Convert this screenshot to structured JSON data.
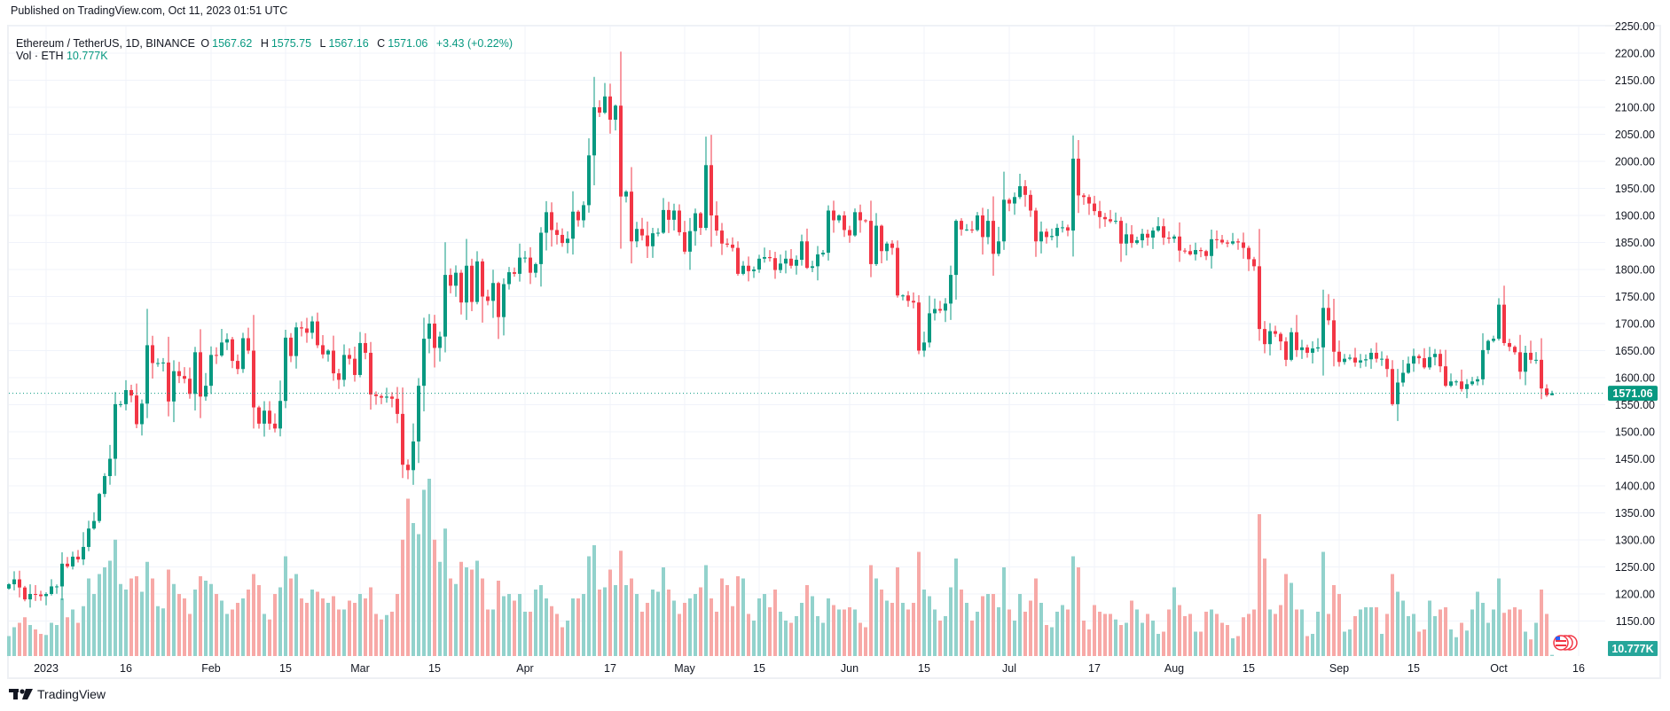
{
  "header": {
    "published": "Published on TradingView.com, Oct 11, 2023 01:51 UTC"
  },
  "legend": {
    "symbol": "Ethereum / TetherUS, 1D, BINANCE",
    "o_label": "O",
    "o": "1567.62",
    "h_label": "H",
    "h": "1575.75",
    "l_label": "L",
    "l": "1567.16",
    "c_label": "C",
    "c": "1571.06",
    "change": "+3.43 (+0.22%)",
    "vol_label": "Vol · ETH",
    "vol": "10.777K"
  },
  "price_axis": {
    "ticks": [
      "2250.00",
      "2200.00",
      "2150.00",
      "2100.00",
      "2050.00",
      "2000.00",
      "1950.00",
      "1900.00",
      "1850.00",
      "1800.00",
      "1750.00",
      "1700.00",
      "1650.00",
      "1600.00",
      "1550.00",
      "1500.00",
      "1450.00",
      "1400.00",
      "1350.00",
      "1300.00",
      "1250.00",
      "1200.00",
      "1150.00"
    ],
    "last_price": "1571.06",
    "last_volume": "10.777K"
  },
  "time_axis": {
    "labels": [
      {
        "text": "2023",
        "date": "2023-01-01"
      },
      {
        "text": "16",
        "date": "2023-01-16"
      },
      {
        "text": "Feb",
        "date": "2023-02-01"
      },
      {
        "text": "15",
        "date": "2023-02-15"
      },
      {
        "text": "Mar",
        "date": "2023-03-01"
      },
      {
        "text": "15",
        "date": "2023-03-15"
      },
      {
        "text": "Apr",
        "date": "2023-04-01"
      },
      {
        "text": "17",
        "date": "2023-04-17"
      },
      {
        "text": "May",
        "date": "2023-05-01"
      },
      {
        "text": "15",
        "date": "2023-05-15"
      },
      {
        "text": "Jun",
        "date": "2023-06-01"
      },
      {
        "text": "15",
        "date": "2023-06-15"
      },
      {
        "text": "Jul",
        "date": "2023-07-01"
      },
      {
        "text": "17",
        "date": "2023-07-17"
      },
      {
        "text": "Aug",
        "date": "2023-08-01"
      },
      {
        "text": "15",
        "date": "2023-08-15"
      },
      {
        "text": "Sep",
        "date": "2023-09-01"
      },
      {
        "text": "15",
        "date": "2023-09-15"
      },
      {
        "text": "Oct",
        "date": "2023-10-01"
      },
      {
        "text": "16",
        "date": "2023-10-16"
      }
    ]
  },
  "footer": {
    "brand": "TradingView"
  },
  "colors": {
    "up": "#089981",
    "down": "#f23645",
    "vol_up": "#92d2cc",
    "vol_down": "#f7a9a7",
    "grid": "#f0f3fa",
    "axis_text": "#131722"
  },
  "chart_data": {
    "type": "candlestick",
    "title": "Ethereum / TetherUS, 1D, BINANCE",
    "start_date": "2022-12-25",
    "ylim": [
      1100,
      2250
    ],
    "last_candle": {
      "o": 1567.62,
      "h": 1575.75,
      "l": 1567.16,
      "c": 1571.06
    },
    "close": [
      1218,
      1227,
      1212,
      1190,
      1200,
      1199,
      1196,
      1200,
      1214,
      1214,
      1256,
      1251,
      1269,
      1264,
      1287,
      1321,
      1335,
      1385,
      1418,
      1450,
      1551,
      1551,
      1577,
      1567,
      1514,
      1552,
      1660,
      1627,
      1627,
      1628,
      1556,
      1612,
      1603,
      1598,
      1570,
      1647,
      1565,
      1585,
      1642,
      1641,
      1665,
      1671,
      1631,
      1616,
      1673,
      1650,
      1545,
      1515,
      1539,
      1515,
      1506,
      1557,
      1674,
      1640,
      1693,
      1691,
      1683,
      1704,
      1660,
      1643,
      1650,
      1608,
      1596,
      1642,
      1635,
      1605,
      1664,
      1646,
      1569,
      1566,
      1563,
      1565,
      1561,
      1533,
      1439,
      1429,
      1482,
      1585,
      1672,
      1700,
      1655,
      1676,
      1790,
      1770,
      1794,
      1739,
      1807,
      1740,
      1815,
      1750,
      1742,
      1775,
      1712,
      1773,
      1795,
      1792,
      1822,
      1822,
      1794,
      1810,
      1868,
      1906,
      1873,
      1864,
      1849,
      1857,
      1907,
      1891,
      1919,
      2011,
      2100,
      2090,
      2120,
      2077,
      2103,
      1935,
      1944,
      1852,
      1875,
      1863,
      1843,
      1867,
      1868,
      1910,
      1892,
      1909,
      1869,
      1833,
      1871,
      1904,
      1877,
      1993,
      1900,
      1872,
      1848,
      1846,
      1840,
      1792,
      1807,
      1797,
      1800,
      1820,
      1823,
      1821,
      1799,
      1811,
      1820,
      1807,
      1818,
      1852,
      1803,
      1806,
      1828,
      1831,
      1909,
      1891,
      1900,
      1873,
      1863,
      1906,
      1891,
      1890,
      1810,
      1881,
      1834,
      1848,
      1840,
      1752,
      1752,
      1742,
      1739,
      1650,
      1665,
      1719,
      1727,
      1724,
      1737,
      1790,
      1890,
      1874,
      1874,
      1873,
      1900,
      1860,
      1890,
      1829,
      1852,
      1929,
      1922,
      1934,
      1954,
      1938,
      1909,
      1852,
      1870,
      1860,
      1862,
      1877,
      1878,
      1872,
      2005,
      1937,
      1934,
      1922,
      1908,
      1897,
      1893,
      1889,
      1890,
      1848,
      1865,
      1849,
      1854,
      1866,
      1859,
      1872,
      1880,
      1859,
      1857,
      1861,
      1835,
      1834,
      1828,
      1836,
      1834,
      1825,
      1856,
      1855,
      1850,
      1848,
      1852,
      1850,
      1840,
      1819,
      1806,
      1690,
      1662,
      1686,
      1681,
      1667,
      1633,
      1684,
      1651,
      1656,
      1646,
      1654,
      1656,
      1729,
      1706,
      1648,
      1629,
      1635,
      1637,
      1628,
      1632,
      1634,
      1646,
      1635,
      1635,
      1616,
      1551,
      1591,
      1609,
      1626,
      1640,
      1636,
      1619,
      1638,
      1644,
      1621,
      1585,
      1593,
      1593,
      1579,
      1588,
      1593,
      1597,
      1651,
      1668,
      1672,
      1735,
      1664,
      1657,
      1647,
      1611,
      1646,
      1633,
      1633,
      1580,
      1567.62,
      1571.06
    ],
    "volume_k": [
      180,
      260,
      300,
      350,
      280,
      240,
      200,
      190,
      300,
      280,
      520,
      350,
      420,
      300,
      450,
      700,
      560,
      740,
      800,
      860,
      1050,
      650,
      600,
      700,
      720,
      580,
      850,
      700,
      450,
      430,
      780,
      650,
      560,
      520,
      380,
      600,
      720,
      680,
      650,
      560,
      500,
      380,
      420,
      480,
      520,
      600,
      740,
      640,
      380,
      330,
      560,
      620,
      900,
      700,
      740,
      520,
      480,
      600,
      580,
      520,
      480,
      540,
      420,
      420,
      500,
      480,
      560,
      520,
      620,
      380,
      330,
      370,
      400,
      560,
      1050,
      1420,
      1200,
      1100,
      1500,
      1600,
      1050,
      850,
      1150,
      700,
      650,
      850,
      800,
      780,
      860,
      700,
      420,
      420,
      680,
      540,
      560,
      500,
      560,
      400,
      400,
      600,
      640,
      520,
      450,
      380,
      260,
      320,
      520,
      520,
      560,
      900,
      1000,
      600,
      620,
      780,
      640,
      950,
      640,
      700,
      560,
      400,
      480,
      600,
      580,
      800,
      600,
      500,
      380,
      480,
      520,
      560,
      620,
      820,
      520,
      400,
      700,
      640,
      450,
      720,
      700,
      380,
      320,
      520,
      560,
      440,
      600,
      400,
      320,
      300,
      360,
      480,
      640,
      540,
      360,
      300,
      520,
      460,
      420,
      420,
      440,
      420,
      300,
      260,
      820,
      700,
      600,
      500,
      480,
      800,
      480,
      420,
      480,
      940,
      600,
      540,
      420,
      320,
      360,
      620,
      880,
      600,
      480,
      320,
      400,
      540,
      560,
      560,
      440,
      800,
      420,
      320,
      560,
      400,
      500,
      700,
      480,
      280,
      260,
      400,
      460,
      420,
      900,
      800,
      320,
      240,
      460,
      400,
      380,
      380,
      330,
      280,
      300,
      500,
      420,
      300,
      380,
      320,
      200,
      220,
      420,
      620,
      460,
      360,
      380,
      220,
      220,
      400,
      420,
      380,
      300,
      280,
      160,
      180,
      350,
      380,
      420,
      1280,
      880,
      420,
      380,
      460,
      740,
      660,
      420,
      420,
      180,
      200,
      400,
      940,
      380,
      640,
      560,
      220,
      240,
      360,
      420,
      440,
      440,
      440,
      200,
      380,
      740,
      580,
      500,
      360,
      380,
      220,
      240,
      500,
      360,
      420,
      440,
      240,
      170,
      300,
      230,
      420,
      580,
      480,
      300,
      420,
      700,
      390,
      420,
      440,
      420,
      220,
      150,
      300,
      600,
      380,
      10.777
    ]
  }
}
